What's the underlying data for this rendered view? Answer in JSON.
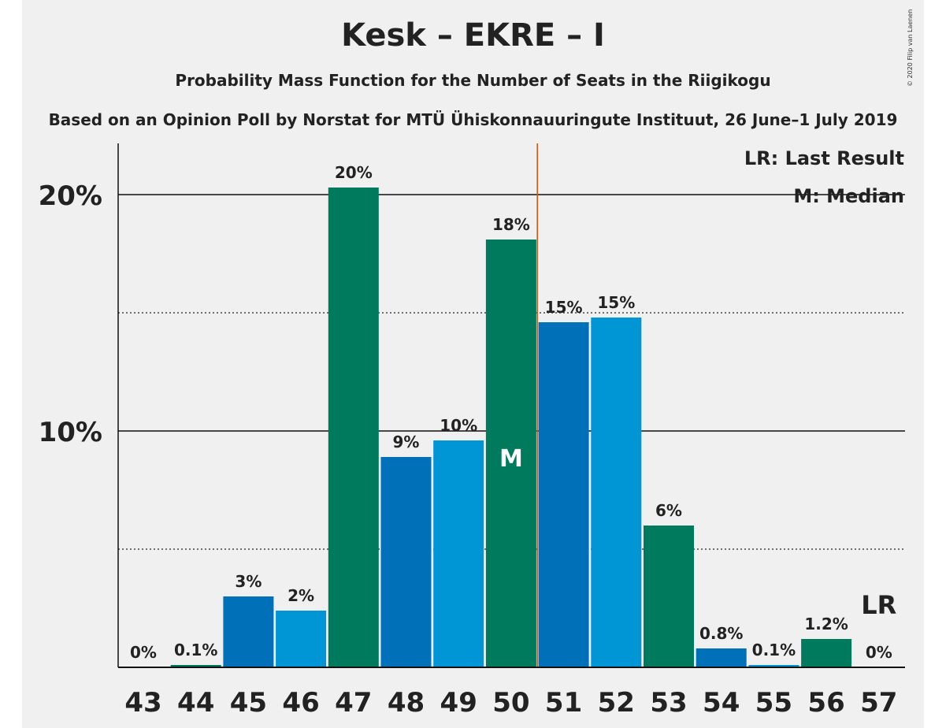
{
  "header": {
    "title": "Kesk – EKRE – I",
    "subtitle": "Probability Mass Function for the Number of Seats in the Riigikogu",
    "source": "Based on an Opinion Poll by Norstat for MTÜ Ühiskonnauuringute Instituut, 26 June–1 July 2019",
    "copyright": "© 2020 Filip van Laenen"
  },
  "chart_data": {
    "type": "bar",
    "categories": [
      "43",
      "44",
      "45",
      "46",
      "47",
      "48",
      "49",
      "50",
      "51",
      "52",
      "53",
      "54",
      "55",
      "56",
      "57"
    ],
    "values": [
      0,
      0.1,
      3.0,
      2.4,
      20.3,
      8.9,
      9.6,
      18.1,
      14.6,
      14.8,
      6.0,
      0.8,
      0.1,
      1.2,
      0
    ],
    "data_labels": [
      "0%",
      "0.1%",
      "3%",
      "2%",
      "20%",
      "9%",
      "10%",
      "18%",
      "15%",
      "15%",
      "6%",
      "0.8%",
      "0.1%",
      "1.2%",
      "0%"
    ],
    "ylim": [
      0,
      22
    ],
    "y_ticks": [
      {
        "value": 10,
        "label": "10%"
      },
      {
        "value": 20,
        "label": "20%"
      }
    ],
    "y_minor_gridlines": [
      5,
      15
    ],
    "median_category": "50",
    "median_marker": "M",
    "last_result_category": "57",
    "last_result_marker": "LR",
    "majority_line_between": [
      "50",
      "51"
    ],
    "legend": [
      "LR: Last Result",
      "M: Median"
    ],
    "legend_position": "top-right",
    "colors": {
      "bar_cycle": [
        "#0096d6",
        "#007a5c",
        "#0070b8"
      ],
      "majority_line": "#c85a1e",
      "background": "#f0f0f0",
      "text": "#222222"
    }
  }
}
